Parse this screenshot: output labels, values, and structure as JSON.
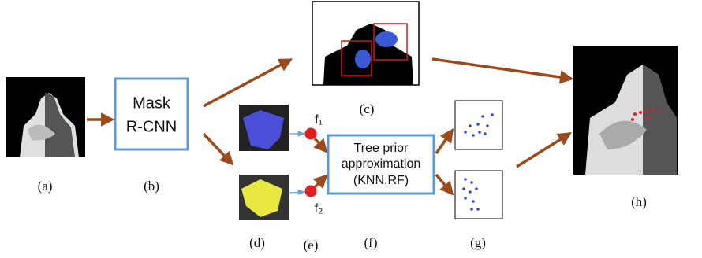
{
  "panel_labels": [
    "(a)",
    "(b)",
    "(c)",
    "(d)",
    "(e)",
    "(f)",
    "(g)",
    "(h)"
  ],
  "mask_rcnn_box": {
    "lines": [
      "Mask",
      "R-CNN"
    ]
  },
  "tree_prior_box": {
    "lines": [
      "Tree prior",
      "approximation",
      "(KNN,RF)"
    ]
  },
  "features": [
    "f₁",
    "f₂"
  ]
}
